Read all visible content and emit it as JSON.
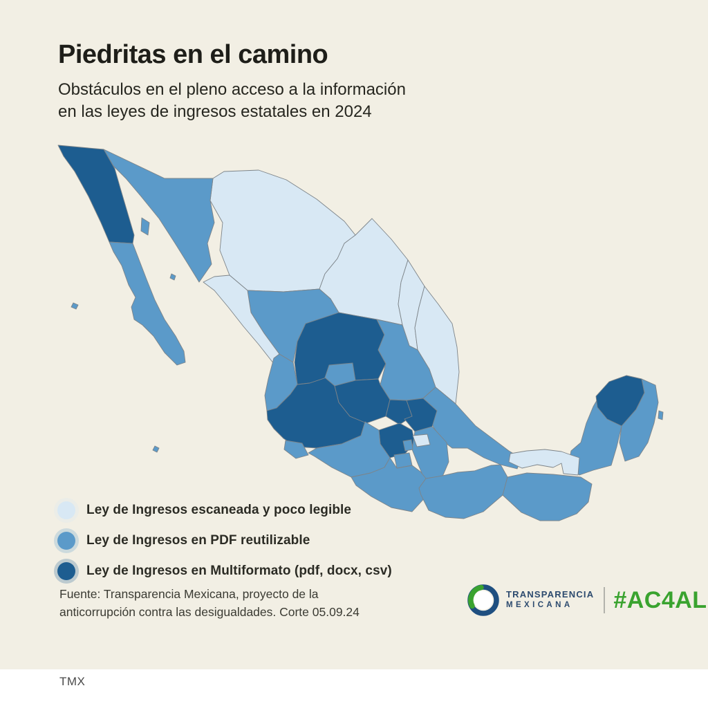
{
  "title": "Piedritas en el camino",
  "subtitle_line1": "Obstáculos en el pleno acceso a la información",
  "subtitle_line2": "en las leyes de ingresos estatales en 2024",
  "legend": {
    "items": [
      {
        "key": "escaneada",
        "label": "Ley de Ingresos escaneada y poco legible",
        "color": "#d8e8f4"
      },
      {
        "key": "pdf",
        "label": "Ley de Ingresos en PDF reutilizable",
        "color": "#5b9ac9"
      },
      {
        "key": "multiformato",
        "label": "Ley de Ingresos en Multiformato (pdf, docx, csv)",
        "color": "#1d5d90"
      }
    ]
  },
  "source_line1": "Fuente: Transparencia Mexicana, proyecto de la",
  "source_line2": "anticorrupción contra las desigualdades. Corte 05.09.24",
  "logo": {
    "brand_line1": "TRANSPARENCIA",
    "brand_line2": "MEXICANA",
    "hashtag": "#AC4ALL",
    "hashtag_color": "#3aa32f",
    "brand_color": "#2c4a6e",
    "ring_blue": "#1f4f80",
    "ring_green": "#3aa32f"
  },
  "footer": {
    "watermark": "TMX"
  },
  "colors": {
    "background": "#f2efe4",
    "map_border": "#7d8489",
    "footer_background": "#ffffff"
  },
  "chart_data": {
    "type": "choropleth_map",
    "region": "México (32 entidades federativas)",
    "title": "Piedritas en el camino",
    "legend_position": "bottom-left",
    "categories": [
      {
        "key": "escaneada",
        "label": "Ley de Ingresos escaneada y poco legible"
      },
      {
        "key": "pdf",
        "label": "Ley de Ingresos en PDF reutilizable"
      },
      {
        "key": "multiformato",
        "label": "Ley de Ingresos en Multiformato (pdf, docx, csv)"
      }
    ],
    "states": [
      {
        "name": "Baja California",
        "category": "multiformato"
      },
      {
        "name": "Baja California Sur",
        "category": "pdf"
      },
      {
        "name": "Sonora",
        "category": "pdf"
      },
      {
        "name": "Chihuahua",
        "category": "escaneada"
      },
      {
        "name": "Coahuila",
        "category": "escaneada"
      },
      {
        "name": "Nuevo León",
        "category": "escaneada"
      },
      {
        "name": "Tamaulipas",
        "category": "escaneada"
      },
      {
        "name": "Sinaloa",
        "category": "escaneada"
      },
      {
        "name": "Durango",
        "category": "pdf"
      },
      {
        "name": "Zacatecas",
        "category": "multiformato"
      },
      {
        "name": "San Luis Potosí",
        "category": "pdf"
      },
      {
        "name": "Nayarit",
        "category": "pdf"
      },
      {
        "name": "Aguascalientes",
        "category": "pdf"
      },
      {
        "name": "Jalisco",
        "category": "multiformato"
      },
      {
        "name": "Guanajuato",
        "category": "multiformato"
      },
      {
        "name": "Querétaro",
        "category": "multiformato"
      },
      {
        "name": "Hidalgo",
        "category": "multiformato"
      },
      {
        "name": "Veracruz",
        "category": "pdf"
      },
      {
        "name": "Colima",
        "category": "pdf"
      },
      {
        "name": "Michoacán",
        "category": "pdf"
      },
      {
        "name": "Estado de México",
        "category": "multiformato"
      },
      {
        "name": "Ciudad de México",
        "category": "pdf"
      },
      {
        "name": "Morelos",
        "category": "pdf"
      },
      {
        "name": "Tlaxcala",
        "category": "escaneada"
      },
      {
        "name": "Puebla",
        "category": "pdf"
      },
      {
        "name": "Guerrero",
        "category": "pdf"
      },
      {
        "name": "Oaxaca",
        "category": "pdf"
      },
      {
        "name": "Chiapas",
        "category": "pdf"
      },
      {
        "name": "Tabasco",
        "category": "escaneada"
      },
      {
        "name": "Campeche",
        "category": "pdf"
      },
      {
        "name": "Yucatán",
        "category": "multiformato"
      },
      {
        "name": "Quintana Roo",
        "category": "pdf"
      }
    ]
  }
}
